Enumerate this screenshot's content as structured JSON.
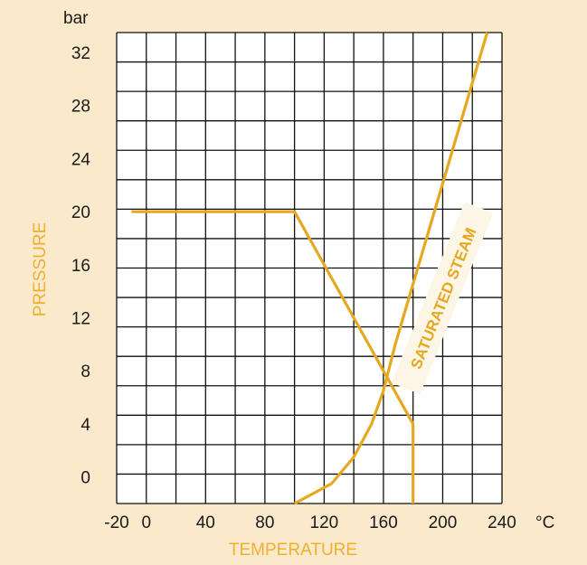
{
  "chart_data": {
    "type": "line",
    "xlabel": "TEMPERATURE",
    "ylabel": "PRESSURE",
    "x_unit": "°C",
    "y_unit": "bar",
    "xlim": [
      -20,
      240
    ],
    "ylim": [
      -2,
      33.5
    ],
    "x_ticks": [
      -20,
      0,
      40,
      80,
      120,
      160,
      200,
      240
    ],
    "y_ticks": [
      0,
      4,
      8,
      12,
      16,
      20,
      24,
      28,
      32
    ],
    "grid": true,
    "colors": {
      "line": "#e6a820",
      "axis_title": "#f0b030",
      "grid": "#111111",
      "plot_bg": "#ffffff",
      "page_bg": "#fbe9cc"
    },
    "series": [
      {
        "values": [
          {
            "x": -10,
            "y": 20
          },
          {
            "x": 100,
            "y": 20
          },
          {
            "x": 180,
            "y": 4
          },
          {
            "x": 180,
            "y": -2
          }
        ]
      },
      {
        "values": [
          {
            "x": 100,
            "y": -2
          },
          {
            "x": 125,
            "y": -0.5
          },
          {
            "x": 140,
            "y": 1.5
          },
          {
            "x": 152,
            "y": 4
          },
          {
            "x": 160,
            "y": 6.5
          },
          {
            "x": 168,
            "y": 10
          },
          {
            "x": 230,
            "y": 33.5
          }
        ]
      }
    ],
    "annotations": [
      {
        "text": "SATURATED STEAM"
      }
    ]
  }
}
